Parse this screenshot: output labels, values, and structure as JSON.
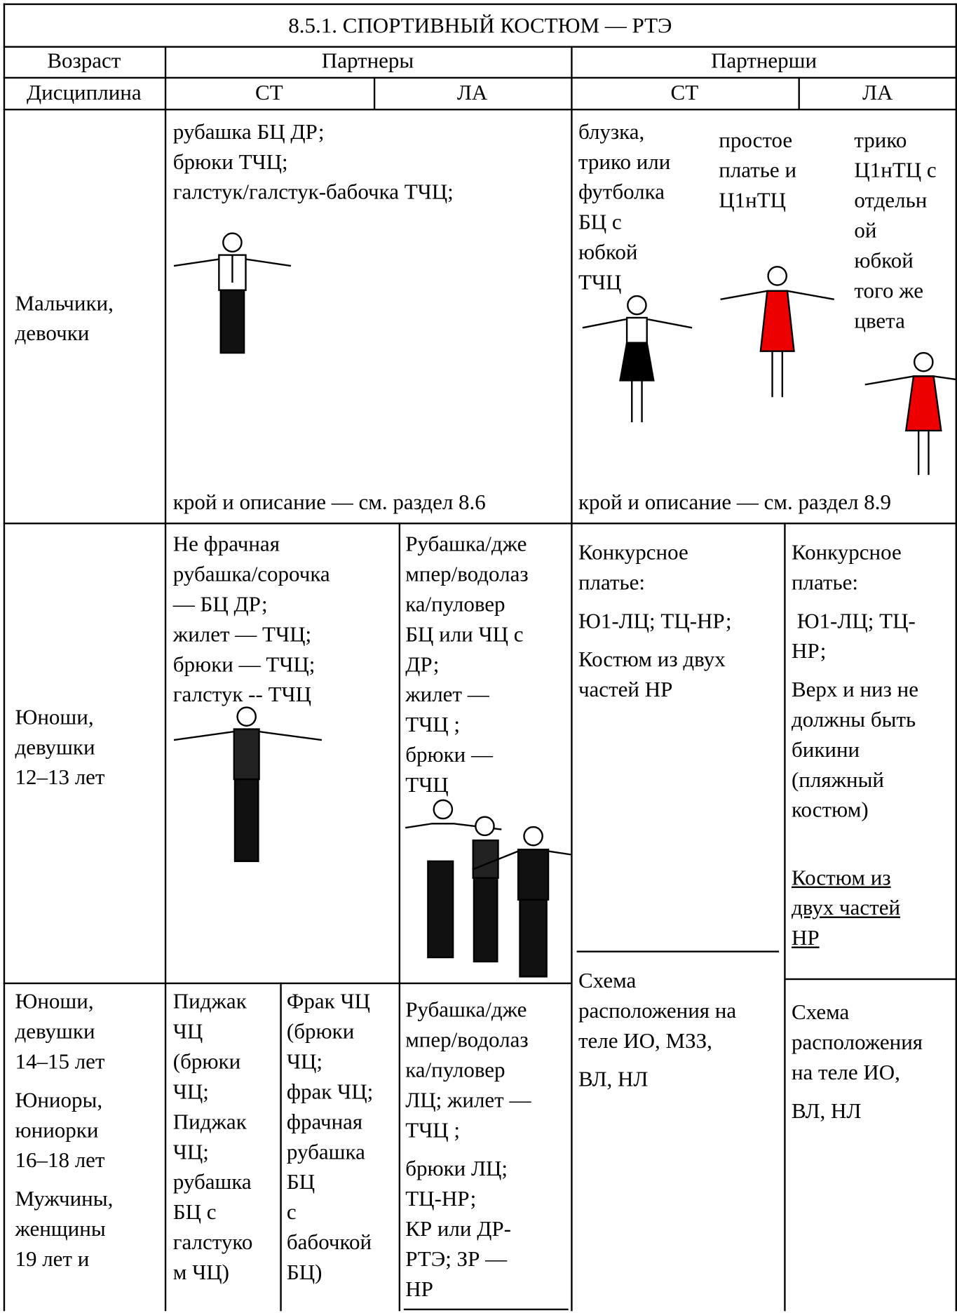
{
  "title": "8.5.1. СПОРТИВНЫЙ КОСТЮМ — РТЭ",
  "header": {
    "age": "Возраст",
    "partners": "Партнеры",
    "partnerses": "Партнерши",
    "discipline": "Дисциплина",
    "partners_st": "СТ",
    "partners_la": "ЛА",
    "partnerses_st": "СТ",
    "partnerses_la": "ЛА"
  },
  "rows": [
    {
      "age": [
        [
          "Мальчики,",
          "девочки"
        ]
      ],
      "partners": [
        [
          "рубашка БЦ ДР;",
          "брюки ТЧЦ;",
          "галстук/галстук-бабочка ТЧЦ;"
        ]
      ],
      "partners_note": "крой и описание — см. раздел 8.6",
      "partnerses_st": [
        [
          "блузка,",
          "трико или",
          "футболка",
          "БЦ с",
          "юбкой",
          "ТЧЦ"
        ]
      ],
      "partnerses_mid": [
        [
          "простое",
          "платье и",
          "Ц1нТЦ"
        ]
      ],
      "partnerses_la": [
        [
          "трико",
          "Ц1нТЦ с",
          "отдельн",
          "ой",
          "юбкой",
          "того же",
          "цвета"
        ]
      ],
      "partnerses_note": "крой и описание — см. раздел 8.9"
    },
    {
      "age": [
        [
          "Юноши,",
          "девушки",
          "12–13 лет"
        ]
      ],
      "partners_st": [
        [
          "Не фрачная",
          "рубашка/сорочка",
          "— БЦ ДР;",
          "жилет — ТЧЦ;",
          "брюки — ТЧЦ;",
          "галстук -- ТЧЦ"
        ]
      ],
      "partners_la": [
        [
          "Рубашка/дже",
          "мпер/водолаз",
          "ка/пуловер",
          "БЦ или ЧЦ с",
          "ДР;",
          "жилет —",
          "ТЧЦ ;",
          "брюки —",
          "ТЧЦ"
        ]
      ],
      "partnerses_st": [
        [
          "Конкурсное",
          "платье:"
        ],
        [
          "Ю1-ЛЦ; ТЦ-НР;"
        ],
        [
          "Костюм из двух",
          "частей НР"
        ]
      ],
      "partnerses_la": [
        [
          "Конкурсное",
          "платье:"
        ],
        [
          " Ю1-ЛЦ; ТЦ-",
          "НР;"
        ],
        [
          "Верх и низ не",
          "должны быть",
          "бикини",
          "(пляжный",
          "костюм)"
        ]
      ],
      "partnerses_la_underlined": [
        [
          "Костюм из",
          "двух частей",
          "НР"
        ]
      ]
    },
    {
      "age": [
        [
          "Юноши,",
          "девушки",
          "14–15 лет"
        ],
        [
          "Юниоры,",
          "юниорки",
          "16–18 лет"
        ],
        [
          "Мужчины,",
          "женщины",
          "19 лет и"
        ]
      ],
      "partners_st_jacket": [
        [
          "Пиджак",
          "ЧЦ",
          "(брюки",
          "ЧЦ;",
          "Пиджак",
          "ЧЦ;",
          "рубашка",
          "БЦ с",
          "галстуко",
          "м ЧЦ)"
        ]
      ],
      "partners_st_tail": [
        [
          "Фрак ЧЦ",
          "(брюки",
          "ЧЦ;",
          "фрак ЧЦ;",
          "фрачная",
          "рубашка",
          "БЦ",
          "с",
          "бабочкой",
          "БЦ)"
        ]
      ],
      "partners_la": [
        [
          "Рубашка/дже",
          "мпер/водолаз",
          "ка/пуловер",
          "ЛЦ; жилет —",
          "ТЧЦ ;"
        ],
        [
          "брюки ЛЦ;",
          "ТЦ-НР;",
          "КР или ДР-",
          "РТЭ; ЗР —",
          "НР"
        ]
      ],
      "partnerses_st": [
        [
          "Схема",
          "расположения на",
          "теле ИО, МЗЗ,"
        ],
        [
          "ВЛ, НЛ"
        ]
      ],
      "partnerses_la": [
        [
          "Схема",
          "расположения",
          "на теле ИО,"
        ],
        [
          "ВЛ, НЛ"
        ]
      ]
    }
  ]
}
